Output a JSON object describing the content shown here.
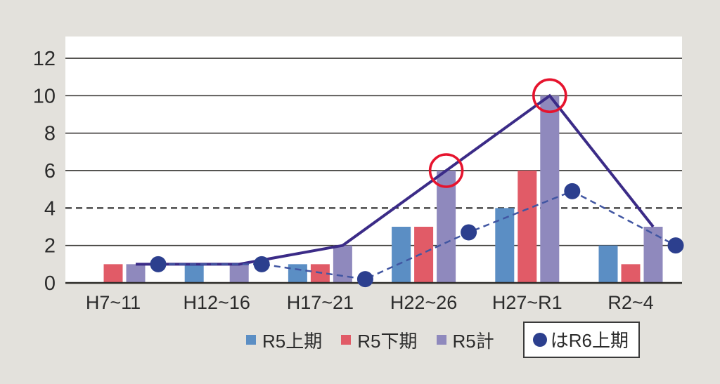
{
  "chart_data": {
    "type": "bar",
    "subtype": "grouped-bars-with-lines",
    "title": "",
    "categories": [
      "H7~11",
      "H12~16",
      "H17~21",
      "H22~26",
      "H27~R1",
      "R2~4"
    ],
    "series": [
      {
        "name": "R5上期",
        "type": "bar",
        "color": "#5b8ec4",
        "values": [
          0,
          1,
          1,
          3,
          4,
          2
        ]
      },
      {
        "name": "R5下期",
        "type": "bar",
        "color": "#e15b67",
        "values": [
          1,
          0,
          1,
          3,
          6,
          1
        ]
      },
      {
        "name": "R5計",
        "type": "bar",
        "color": "#8f89bd",
        "values": [
          1,
          1,
          2,
          6,
          10,
          3
        ],
        "overlay_line": {
          "style": "solid",
          "color": "#3b2b87",
          "width": 4
        }
      },
      {
        "name": "R6上期",
        "type": "line",
        "marker": "filled-circle",
        "color": "#2c3f8e",
        "line_style": "dashed",
        "line_color": "#4156a2",
        "values": [
          1,
          1,
          0.2,
          2.7,
          4.9,
          2
        ]
      }
    ],
    "highlight_circles": [
      {
        "category": "H22~26",
        "value": 6,
        "color": "#e6142e"
      },
      {
        "category": "H27~R1",
        "value": 10,
        "color": "#e6142e"
      }
    ],
    "reference_gridline": {
      "y": 4,
      "style": "dashed"
    },
    "ylim": [
      0,
      12
    ],
    "yticks": [
      0,
      2,
      4,
      6,
      8,
      10,
      12
    ],
    "grid": "horizontal",
    "legend_position": "bottom",
    "colors": {
      "background": "#e3e1dc",
      "plot_background": "#ffffff",
      "gridline": "#3d3b38",
      "axis": "#2b2926",
      "text": "#2b2b2b"
    }
  },
  "legend": {
    "items": [
      {
        "label": "R5上期",
        "color": "#5b8ec4"
      },
      {
        "label": "R5下期",
        "color": "#e15b67"
      },
      {
        "label": "R5計",
        "color": "#8f89bd"
      }
    ],
    "boxed_item": {
      "marker": "filled-circle",
      "marker_color": "#2c3f8e",
      "label": "はR6上期"
    }
  }
}
